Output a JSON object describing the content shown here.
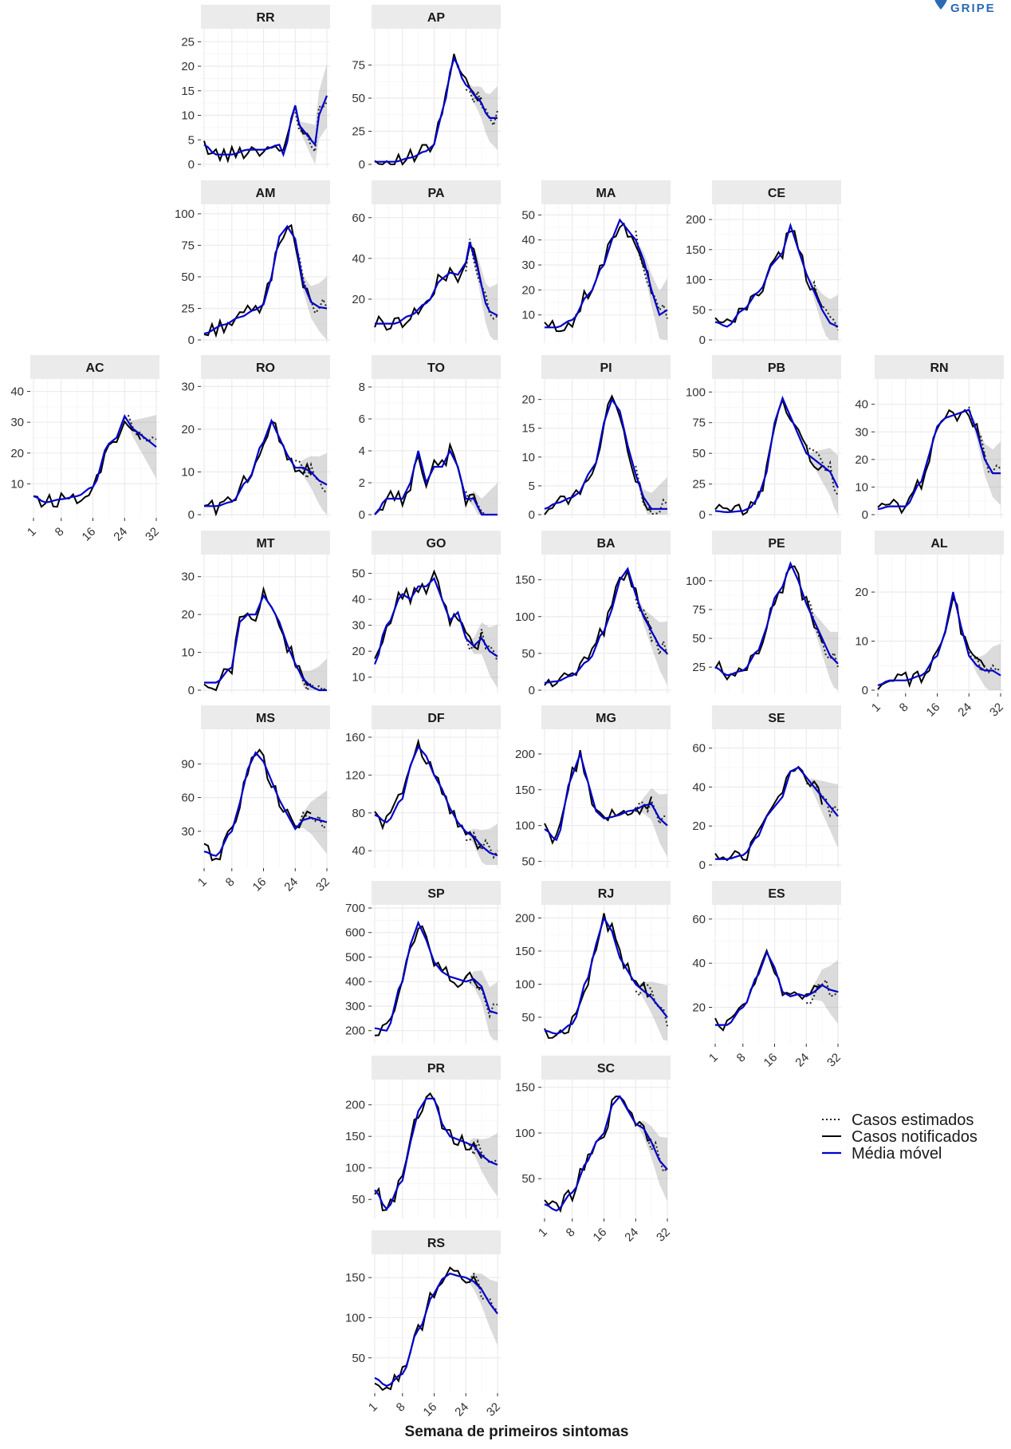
{
  "logo": {
    "text": "GRIPE",
    "color": "#2a6bb3"
  },
  "legend": [
    {
      "label": "Casos estimados",
      "style": "dotted",
      "color": "#222222"
    },
    {
      "label": "Casos notificados",
      "style": "solid",
      "color": "#000000"
    },
    {
      "label": "Média móvel",
      "style": "solid",
      "color": "#0000cc"
    }
  ],
  "xlabel": "Semana de primeiros sintomas",
  "chart_data": {
    "type": "line",
    "layout": "faceted geofacet by Brazilian state",
    "x_ticks": [
      1,
      8,
      16,
      24,
      32
    ],
    "xlim": [
      1,
      32
    ],
    "band_color": "#999999",
    "series_names": [
      "Casos estimados",
      "Casos notificados",
      "Média móvel"
    ],
    "facets": [
      {
        "name": "RR",
        "row": 0,
        "col": 1,
        "yticks": [
          0,
          5,
          10,
          15,
          20,
          25
        ],
        "ylim": [
          0,
          27
        ],
        "x_axis": false,
        "weeks": [
          1,
          4,
          8,
          12,
          16,
          20,
          21,
          24,
          25,
          27,
          29,
          30,
          32
        ],
        "values": [
          4,
          2,
          2,
          3,
          3,
          4,
          2,
          12,
          8,
          6,
          4,
          10,
          14
        ]
      },
      {
        "name": "AP",
        "row": 0,
        "col": 2,
        "yticks": [
          0,
          25,
          50,
          75
        ],
        "ylim": [
          0,
          100
        ],
        "x_axis": false,
        "weeks": [
          1,
          6,
          10,
          14,
          16,
          18,
          21,
          24,
          27,
          30,
          32
        ],
        "values": [
          2,
          2,
          5,
          10,
          15,
          40,
          80,
          60,
          50,
          35,
          35
        ]
      },
      {
        "name": "AM",
        "row": 1,
        "col": 1,
        "yticks": [
          0,
          25,
          50,
          75,
          100
        ],
        "ylim": [
          0,
          105
        ],
        "x_axis": false,
        "weeks": [
          1,
          6,
          10,
          14,
          16,
          18,
          20,
          22,
          24,
          26,
          28,
          30,
          32
        ],
        "values": [
          5,
          12,
          18,
          24,
          28,
          50,
          82,
          90,
          80,
          45,
          30,
          26,
          25
        ]
      },
      {
        "name": "PA",
        "row": 1,
        "col": 2,
        "yticks": [
          20,
          40,
          60
        ],
        "ylim": [
          0,
          65
        ],
        "x_axis": false,
        "weeks": [
          1,
          6,
          10,
          14,
          18,
          20,
          22,
          24,
          25,
          27,
          29,
          30,
          32
        ],
        "values": [
          8,
          8,
          12,
          18,
          30,
          33,
          32,
          38,
          48,
          35,
          18,
          14,
          12
        ]
      },
      {
        "name": "MA",
        "row": 1,
        "col": 3,
        "yticks": [
          10,
          20,
          30,
          40,
          50
        ],
        "ylim": [
          0,
          53
        ],
        "x_axis": false,
        "weeks": [
          1,
          4,
          8,
          12,
          16,
          18,
          20,
          22,
          24,
          26,
          28,
          30,
          32
        ],
        "values": [
          5,
          5,
          8,
          18,
          30,
          40,
          48,
          44,
          40,
          32,
          20,
          10,
          12
        ]
      },
      {
        "name": "CE",
        "row": 1,
        "col": 4,
        "yticks": [
          0,
          50,
          100,
          150,
          200
        ],
        "ylim": [
          0,
          220
        ],
        "x_axis": false,
        "weeks": [
          1,
          4,
          8,
          12,
          16,
          18,
          20,
          22,
          24,
          26,
          28,
          30,
          32
        ],
        "values": [
          30,
          22,
          50,
          80,
          130,
          145,
          190,
          150,
          110,
          80,
          50,
          28,
          22
        ]
      },
      {
        "name": "AC",
        "row": 2,
        "col": 0,
        "yticks": [
          10,
          20,
          30,
          40
        ],
        "ylim": [
          0,
          43
        ],
        "x_axis": true,
        "weeks": [
          1,
          4,
          8,
          12,
          16,
          20,
          22,
          24,
          26,
          28,
          30,
          32
        ],
        "values": [
          6,
          4,
          5,
          6,
          9,
          23,
          25,
          32,
          28,
          26,
          24,
          22
        ]
      },
      {
        "name": "RO",
        "row": 2,
        "col": 1,
        "yticks": [
          0,
          10,
          20,
          30
        ],
        "ylim": [
          0,
          31
        ],
        "x_axis": false,
        "weeks": [
          1,
          4,
          8,
          12,
          16,
          18,
          20,
          22,
          24,
          26,
          28,
          30,
          32
        ],
        "values": [
          2,
          2,
          3,
          8,
          17,
          22,
          18,
          14,
          11,
          11,
          10,
          8,
          7
        ]
      },
      {
        "name": "TO",
        "row": 2,
        "col": 2,
        "yticks": [
          0,
          2,
          4,
          6,
          8
        ],
        "ylim": [
          0,
          8.3
        ],
        "x_axis": false,
        "weeks": [
          1,
          4,
          8,
          10,
          12,
          14,
          16,
          18,
          20,
          22,
          24,
          26,
          28,
          32
        ],
        "values": [
          0,
          1,
          1,
          2,
          4,
          2,
          3,
          3,
          4,
          3,
          1,
          1,
          0,
          0
        ]
      },
      {
        "name": "PI",
        "row": 2,
        "col": 3,
        "yticks": [
          0,
          5,
          10,
          15,
          20
        ],
        "ylim": [
          0,
          23
        ],
        "x_axis": false,
        "weeks": [
          1,
          4,
          8,
          10,
          12,
          14,
          16,
          18,
          20,
          22,
          24,
          26,
          28,
          30,
          32
        ],
        "values": [
          1,
          2,
          3,
          4,
          7,
          9,
          16,
          20,
          18,
          12,
          7,
          3,
          1,
          1,
          1
        ]
      },
      {
        "name": "PB",
        "row": 2,
        "col": 4,
        "yticks": [
          0,
          25,
          50,
          75,
          100
        ],
        "ylim": [
          0,
          108
        ],
        "x_axis": false,
        "weeks": [
          1,
          4,
          8,
          10,
          12,
          14,
          16,
          18,
          20,
          22,
          24,
          26,
          28,
          30,
          32
        ],
        "values": [
          3,
          2,
          3,
          6,
          15,
          35,
          75,
          95,
          80,
          65,
          50,
          45,
          40,
          35,
          22
        ]
      },
      {
        "name": "RN",
        "row": 2,
        "col": 5,
        "yticks": [
          0,
          10,
          20,
          30,
          40
        ],
        "ylim": [
          0,
          48
        ],
        "x_axis": false,
        "weeks": [
          1,
          4,
          8,
          12,
          14,
          16,
          18,
          20,
          22,
          24,
          26,
          28,
          30,
          32
        ],
        "values": [
          2,
          3,
          3,
          12,
          22,
          32,
          35,
          36,
          37,
          38,
          30,
          20,
          15,
          15
        ]
      },
      {
        "name": "MT",
        "row": 3,
        "col": 1,
        "yticks": [
          0,
          10,
          20,
          30
        ],
        "ylim": [
          0,
          35
        ],
        "x_axis": false,
        "weeks": [
          1,
          4,
          8,
          10,
          12,
          14,
          16,
          18,
          20,
          22,
          24,
          26,
          28,
          30,
          32
        ],
        "values": [
          2,
          2,
          6,
          18,
          20,
          20,
          25,
          22,
          18,
          12,
          7,
          3,
          1,
          0,
          0
        ]
      },
      {
        "name": "GO",
        "row": 3,
        "col": 2,
        "yticks": [
          10,
          20,
          30,
          40,
          50
        ],
        "ylim": [
          5,
          56
        ],
        "x_axis": false,
        "weeks": [
          1,
          4,
          8,
          10,
          12,
          14,
          16,
          18,
          20,
          22,
          24,
          26,
          28,
          30,
          32
        ],
        "values": [
          15,
          30,
          42,
          40,
          45,
          45,
          48,
          40,
          32,
          35,
          25,
          22,
          25,
          20,
          18
        ]
      },
      {
        "name": "BA",
        "row": 3,
        "col": 3,
        "yticks": [
          0,
          50,
          100,
          150
        ],
        "ylim": [
          0,
          180
        ],
        "x_axis": false,
        "weeks": [
          1,
          4,
          8,
          12,
          16,
          18,
          20,
          22,
          24,
          26,
          28,
          30,
          32
        ],
        "values": [
          10,
          12,
          20,
          40,
          80,
          110,
          150,
          165,
          130,
          100,
          80,
          60,
          50
        ]
      },
      {
        "name": "PE",
        "row": 3,
        "col": 4,
        "yticks": [
          25,
          50,
          75,
          100
        ],
        "ylim": [
          5,
          120
        ],
        "x_axis": false,
        "weeks": [
          1,
          4,
          8,
          12,
          14,
          16,
          18,
          20,
          22,
          24,
          26,
          28,
          30,
          32
        ],
        "values": [
          25,
          18,
          22,
          40,
          60,
          85,
          95,
          115,
          100,
          80,
          65,
          50,
          35,
          28
        ]
      },
      {
        "name": "AL",
        "row": 3,
        "col": 5,
        "yticks": [
          0,
          10,
          20
        ],
        "ylim": [
          0,
          27
        ],
        "x_axis": true,
        "weeks": [
          1,
          4,
          8,
          12,
          16,
          18,
          20,
          22,
          24,
          26,
          28,
          30,
          32
        ],
        "values": [
          1,
          2,
          2,
          3,
          7,
          12,
          20,
          13,
          7,
          5,
          4,
          4,
          3
        ]
      },
      {
        "name": "MS",
        "row": 4,
        "col": 1,
        "yticks": [
          30,
          60,
          90
        ],
        "ylim": [
          0,
          118
        ],
        "x_axis": true,
        "weeks": [
          1,
          4,
          8,
          10,
          12,
          14,
          16,
          18,
          20,
          22,
          24,
          26,
          28,
          30,
          32
        ],
        "values": [
          12,
          8,
          30,
          55,
          85,
          100,
          92,
          75,
          58,
          45,
          32,
          40,
          42,
          40,
          38
        ]
      },
      {
        "name": "DF",
        "row": 4,
        "col": 2,
        "yticks": [
          40,
          80,
          120,
          160
        ],
        "ylim": [
          25,
          165
        ],
        "x_axis": false,
        "weeks": [
          1,
          4,
          8,
          10,
          12,
          14,
          16,
          18,
          20,
          22,
          24,
          26,
          28,
          30,
          32
        ],
        "values": [
          78,
          70,
          95,
          130,
          150,
          140,
          120,
          105,
          85,
          70,
          60,
          55,
          45,
          38,
          35
        ]
      },
      {
        "name": "MG",
        "row": 4,
        "col": 3,
        "yticks": [
          50,
          100,
          150,
          200
        ],
        "ylim": [
          45,
          230
        ],
        "x_axis": false,
        "weeks": [
          1,
          4,
          8,
          10,
          12,
          14,
          16,
          18,
          20,
          22,
          24,
          26,
          28,
          30,
          32
        ],
        "values": [
          95,
          80,
          170,
          200,
          160,
          120,
          110,
          112,
          115,
          120,
          122,
          128,
          130,
          110,
          100
        ]
      },
      {
        "name": "SE",
        "row": 4,
        "col": 4,
        "yticks": [
          0,
          20,
          40,
          60
        ],
        "ylim": [
          0,
          68
        ],
        "x_axis": false,
        "weeks": [
          1,
          4,
          8,
          12,
          14,
          16,
          18,
          20,
          22,
          24,
          26,
          28,
          30,
          32
        ],
        "values": [
          3,
          3,
          5,
          15,
          25,
          30,
          35,
          48,
          50,
          45,
          40,
          35,
          30,
          25
        ]
      },
      {
        "name": "SP",
        "row": 5,
        "col": 2,
        "yticks": [
          200,
          300,
          400,
          500,
          600,
          700
        ],
        "ylim": [
          160,
          700
        ],
        "x_axis": false,
        "weeks": [
          1,
          4,
          8,
          10,
          12,
          14,
          16,
          18,
          20,
          22,
          24,
          26,
          28,
          30,
          32
        ],
        "values": [
          210,
          200,
          400,
          550,
          640,
          570,
          480,
          440,
          420,
          410,
          400,
          410,
          380,
          280,
          270
        ]
      },
      {
        "name": "RJ",
        "row": 5,
        "col": 3,
        "yticks": [
          50,
          100,
          150,
          200
        ],
        "ylim": [
          15,
          215
        ],
        "x_axis": false,
        "weeks": [
          1,
          4,
          8,
          12,
          14,
          16,
          18,
          20,
          22,
          24,
          26,
          28,
          30,
          32
        ],
        "values": [
          30,
          25,
          40,
          110,
          160,
          200,
          180,
          140,
          120,
          100,
          90,
          80,
          65,
          50
        ]
      },
      {
        "name": "ES",
        "row": 5,
        "col": 4,
        "yticks": [
          20,
          40,
          60
        ],
        "ylim": [
          5,
          65
        ],
        "x_axis": true,
        "weeks": [
          1,
          4,
          8,
          12,
          14,
          16,
          18,
          20,
          22,
          24,
          26,
          28,
          30,
          32
        ],
        "values": [
          12,
          12,
          20,
          35,
          45,
          38,
          27,
          25,
          26,
          25,
          27,
          30,
          28,
          27
        ]
      },
      {
        "name": "PR",
        "row": 6,
        "col": 2,
        "yticks": [
          50,
          100,
          150,
          200
        ],
        "ylim": [
          25,
          235
        ],
        "x_axis": false,
        "weeks": [
          1,
          4,
          8,
          10,
          12,
          14,
          16,
          18,
          20,
          22,
          24,
          26,
          28,
          30,
          32
        ],
        "values": [
          65,
          35,
          80,
          140,
          190,
          210,
          210,
          170,
          150,
          145,
          140,
          135,
          120,
          110,
          105
        ]
      },
      {
        "name": "SC",
        "row": 6,
        "col": 3,
        "yticks": [
          50,
          100,
          150
        ],
        "ylim": [
          10,
          155
        ],
        "x_axis": true,
        "weeks": [
          1,
          4,
          8,
          12,
          14,
          16,
          18,
          20,
          22,
          24,
          26,
          28,
          30,
          32
        ],
        "values": [
          22,
          15,
          35,
          70,
          90,
          100,
          130,
          140,
          125,
          110,
          105,
          90,
          70,
          60
        ]
      },
      {
        "name": "RS",
        "row": 7,
        "col": 2,
        "yticks": [
          50,
          100,
          150
        ],
        "ylim": [
          10,
          175
        ],
        "x_axis": true,
        "weeks": [
          1,
          4,
          8,
          12,
          16,
          18,
          20,
          22,
          24,
          26,
          28,
          30,
          32
        ],
        "values": [
          25,
          15,
          30,
          85,
          130,
          148,
          155,
          152,
          150,
          145,
          135,
          118,
          105
        ]
      }
    ]
  }
}
